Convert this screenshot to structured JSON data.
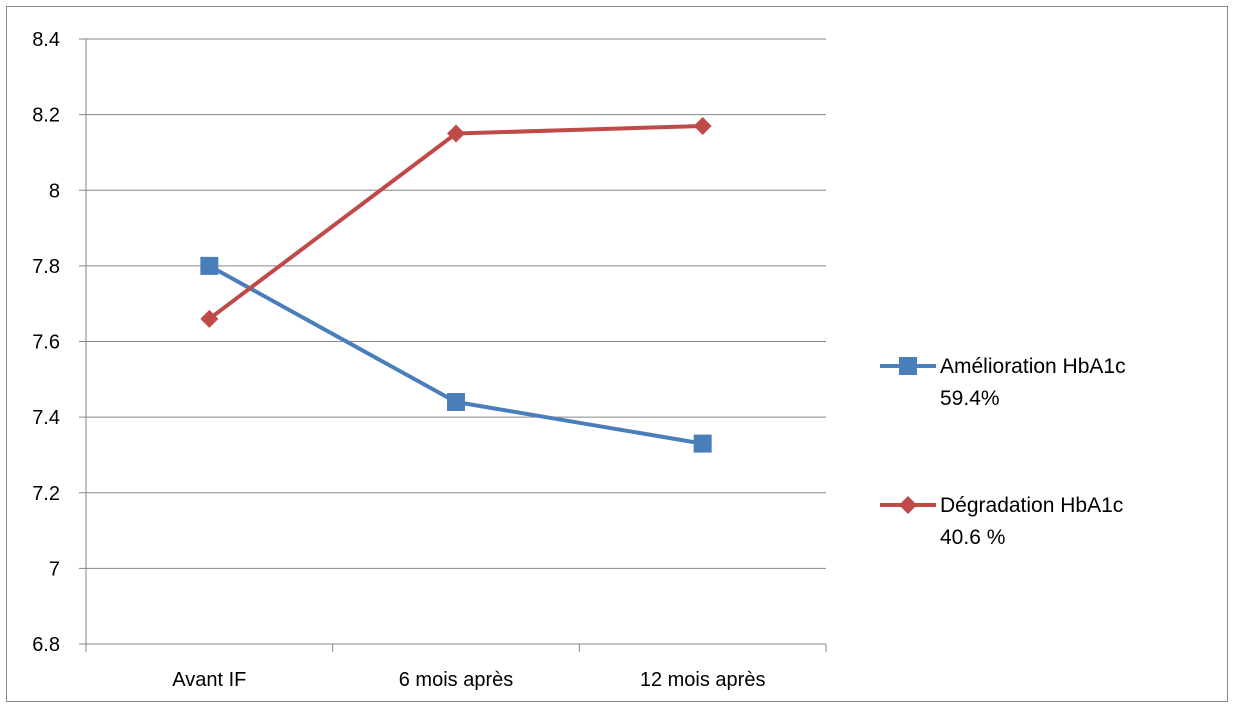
{
  "chart_data": {
    "type": "line",
    "title": "",
    "xlabel": "",
    "ylabel": "",
    "categories": [
      "Avant IF",
      "6 mois après",
      "12 mois après"
    ],
    "ylim": [
      6.8,
      8.4
    ],
    "yticks": [
      "6.8",
      "7",
      "7.2",
      "7.4",
      "7.6",
      "7.8",
      "8",
      "8.2",
      "8.4"
    ],
    "grid": true,
    "legend_position": "right",
    "series": [
      {
        "name_lines": [
          "Amélioration HbA1c",
          "59.4%"
        ],
        "values": [
          7.8,
          7.44,
          7.33
        ],
        "color": "#4a7ebb",
        "marker": "square"
      },
      {
        "name_lines": [
          "Dégradation HbA1c",
          "40.6 %"
        ],
        "values": [
          7.66,
          8.15,
          8.17
        ],
        "color": "#be4b48",
        "marker": "diamond"
      }
    ]
  }
}
